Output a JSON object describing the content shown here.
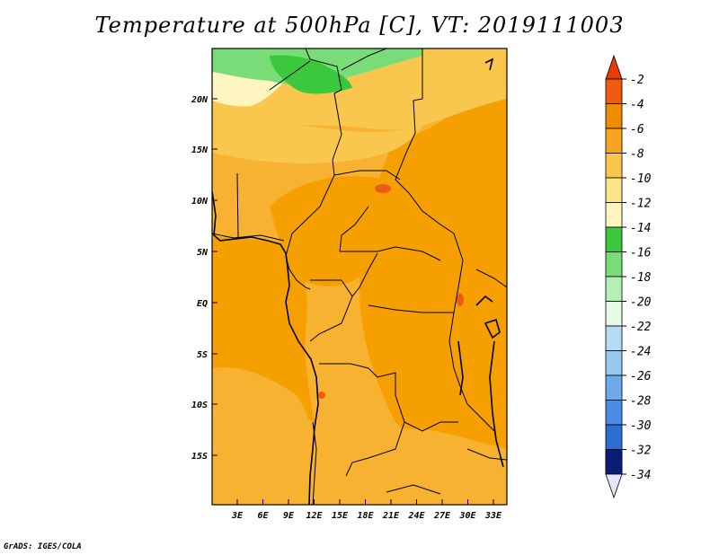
{
  "title": "Temperature at 500hPa [C], VT: 2019111003",
  "footer": "GrADS: IGES/COLA",
  "lat_labels": [
    "20N",
    "15N",
    "10N",
    "5N",
    "EQ",
    "5S",
    "10S",
    "15S"
  ],
  "lon_labels": [
    "3E",
    "6E",
    "9E",
    "12E",
    "15E",
    "18E",
    "21E",
    "24E",
    "27E",
    "30E",
    "33E"
  ],
  "legend": {
    "labels": [
      "-2",
      "-4",
      "-6",
      "-8",
      "-10",
      "-12",
      "-14",
      "-16",
      "-18",
      "-20",
      "-22",
      "-24",
      "-26",
      "-28",
      "-30",
      "-32",
      "-34"
    ],
    "colors": [
      "#f05a10",
      "#f08c00",
      "#f5a520",
      "#f9c74e",
      "#fde38a",
      "#fff5c0",
      "#3cc83c",
      "#78dc78",
      "#b4f0b4",
      "#e6fae6",
      "#b4dcf5",
      "#96c8f0",
      "#6eaaeb",
      "#4b8ce6",
      "#2d6ed2",
      "#1e50b4",
      "#0a1e78",
      "#ffffff"
    ],
    "top_arrow_color": "#e63c00",
    "bottom_arrow_color": "#e6e6fa"
  },
  "fields": {
    "ocean_color": "#f5a000",
    "land_base_color": "#f7b232",
    "north_light_color": "#fde38a",
    "green_color": "#3cc83c",
    "light_green_color": "#78dc78"
  }
}
